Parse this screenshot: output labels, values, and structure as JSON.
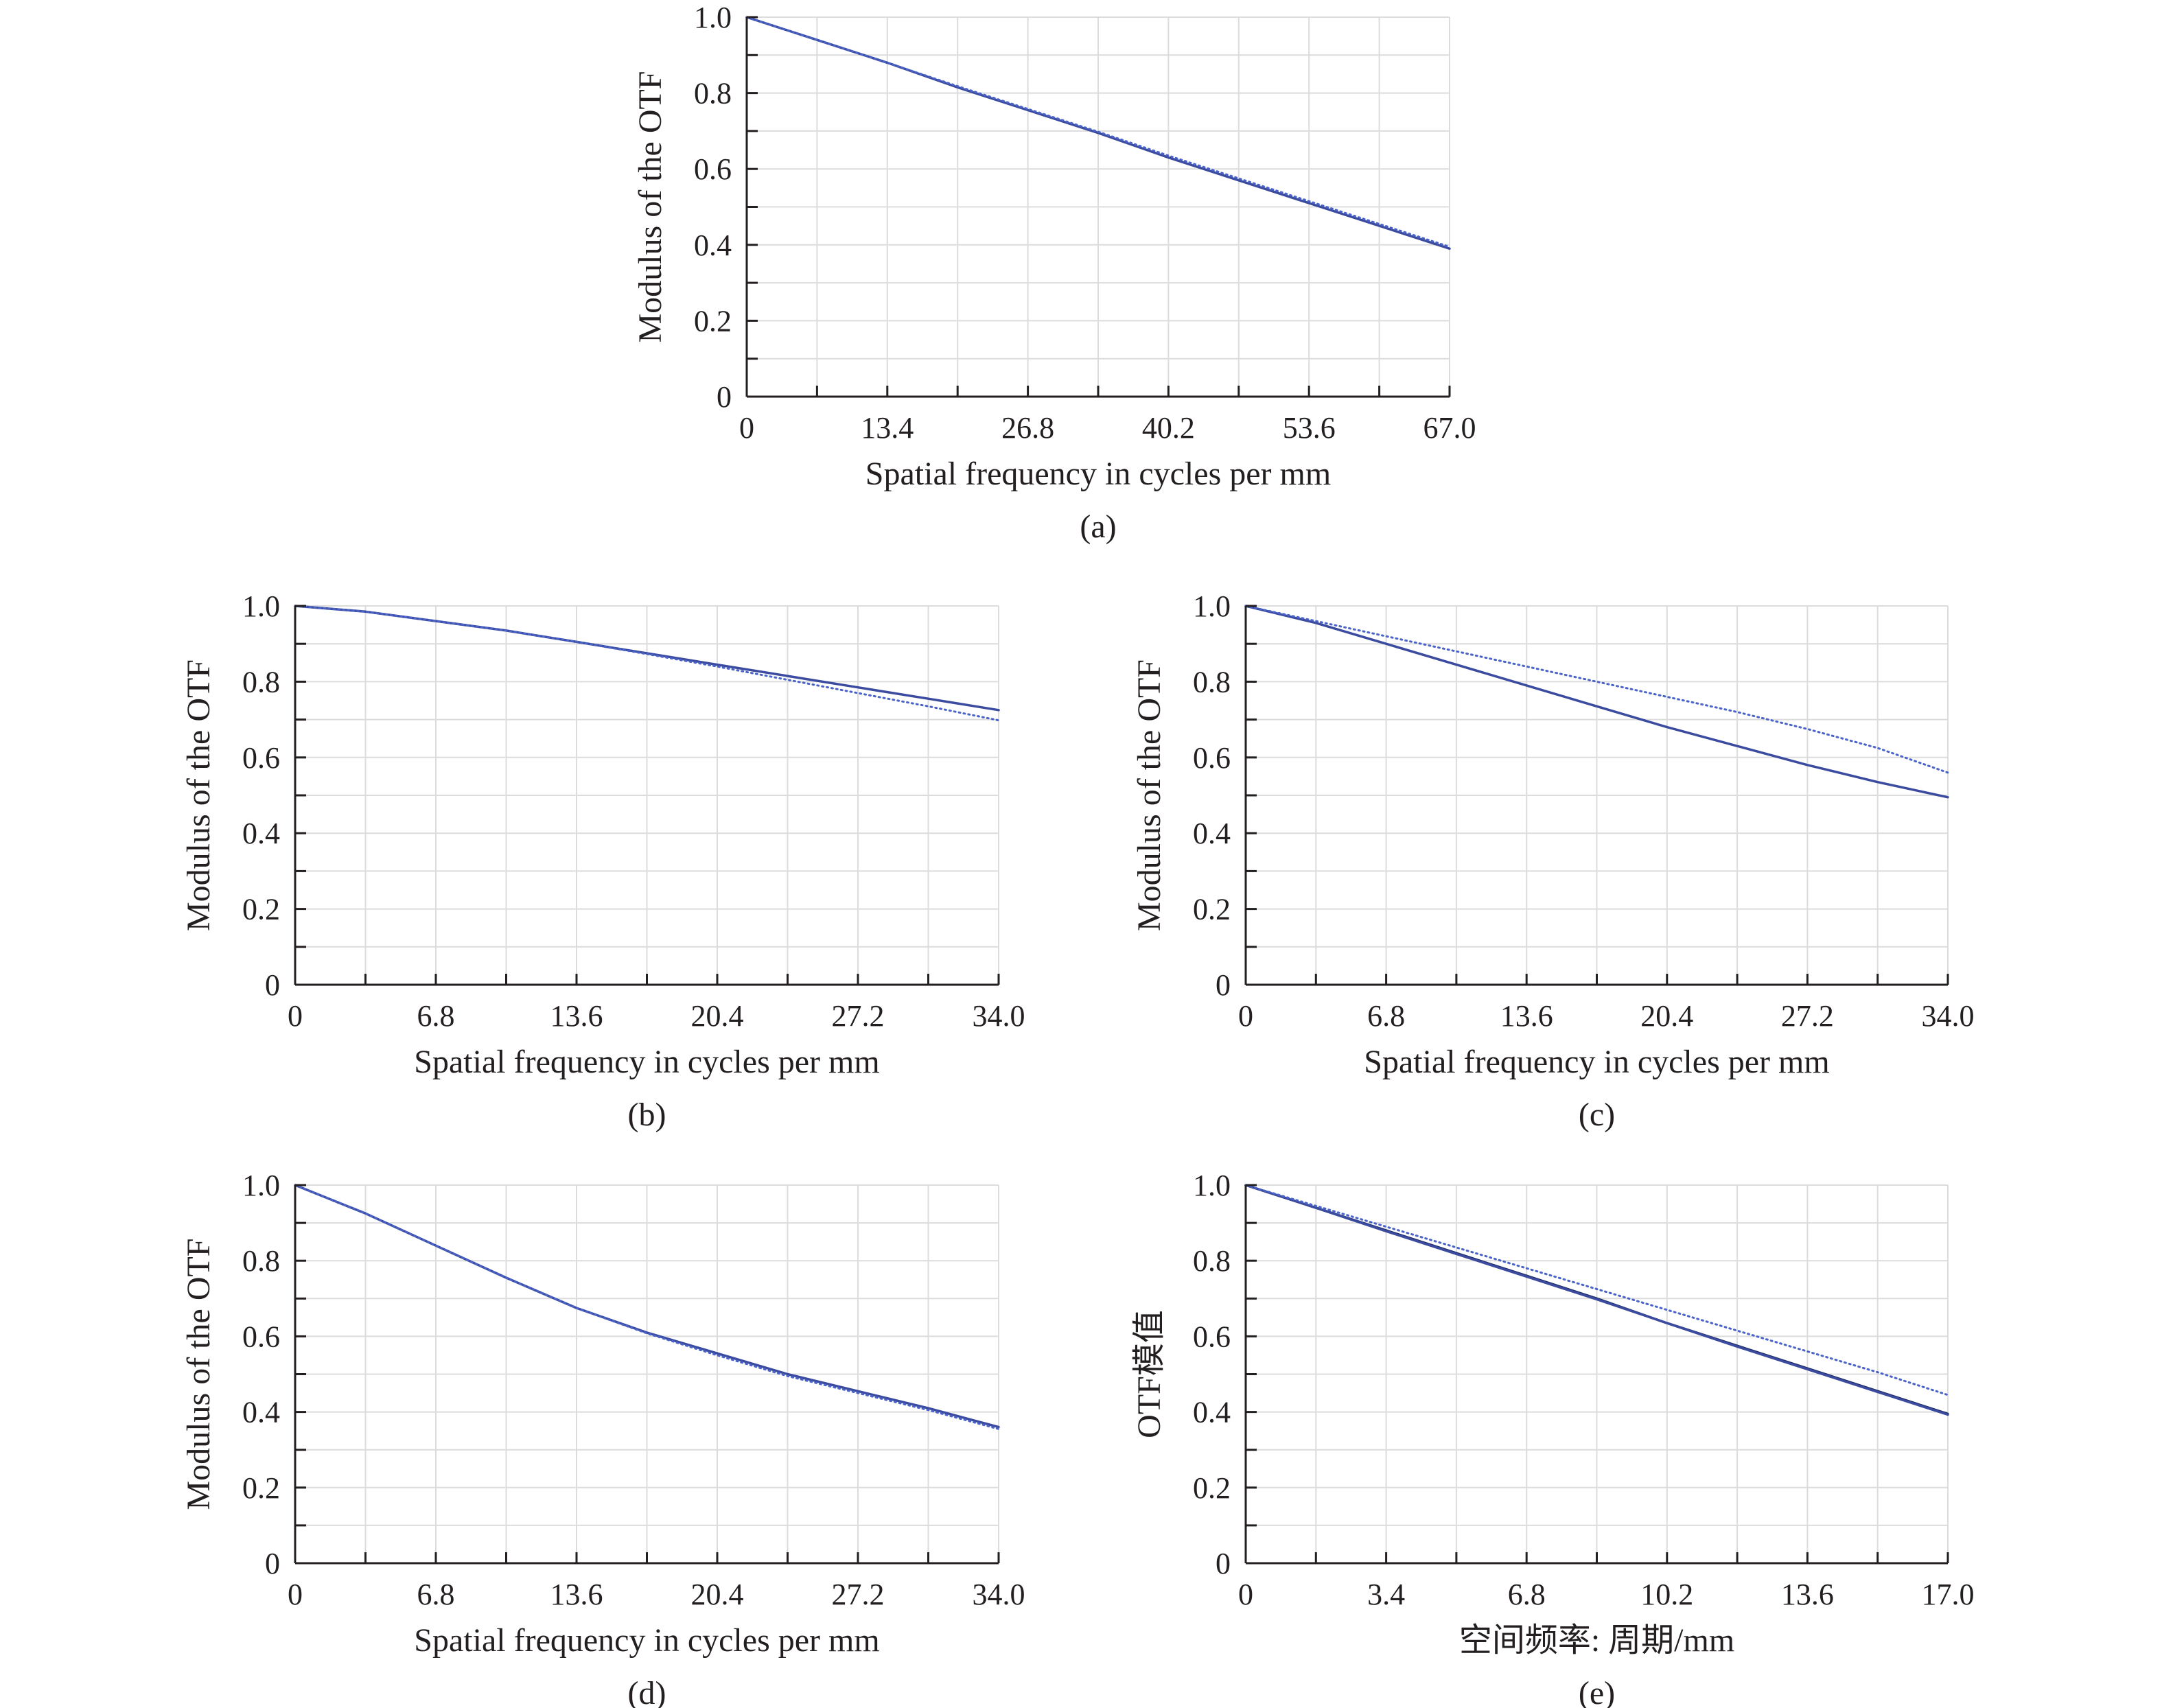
{
  "chart_data": [
    {
      "id": "a",
      "type": "line",
      "caption": "(a)",
      "xlabel": "Spatial frequency in cycles per mm",
      "ylabel": "Modulus of the OTF",
      "xlim": [
        0,
        67.0
      ],
      "ylim": [
        0,
        1.0
      ],
      "xticks": [
        0,
        13.4,
        26.8,
        40.2,
        53.6,
        67.0
      ],
      "xtick_labels": [
        "0",
        "13.4",
        "26.8",
        "40.2",
        "53.6",
        "67.0"
      ],
      "yticks": [
        0,
        0.2,
        0.4,
        0.6,
        0.8,
        1.0
      ],
      "ytick_labels": [
        "0",
        "0.2",
        "0.4",
        "0.6",
        "0.8",
        "1.0"
      ],
      "grid": true,
      "x": [
        0,
        6.7,
        13.4,
        20.1,
        26.8,
        33.5,
        40.2,
        46.9,
        53.6,
        60.3,
        67.0
      ],
      "series": [
        {
          "style": "solid",
          "color": "#3b4ba0",
          "values": [
            1.0,
            0.94,
            0.88,
            0.815,
            0.755,
            0.695,
            0.63,
            0.57,
            0.51,
            0.45,
            0.39
          ]
        },
        {
          "style": "dotted",
          "color": "#4a63c8",
          "values": [
            1.0,
            0.94,
            0.88,
            0.818,
            0.758,
            0.698,
            0.635,
            0.575,
            0.515,
            0.455,
            0.395
          ]
        }
      ]
    },
    {
      "id": "b",
      "type": "line",
      "caption": "(b)",
      "xlabel": "Spatial frequency in cycles per mm",
      "ylabel": "Modulus of the OTF",
      "xlim": [
        0,
        34.0
      ],
      "ylim": [
        0,
        1.0
      ],
      "xticks": [
        0,
        6.8,
        13.6,
        20.4,
        27.2,
        34.0
      ],
      "xtick_labels": [
        "0",
        "6.8",
        "13.6",
        "20.4",
        "27.2",
        "34.0"
      ],
      "yticks": [
        0,
        0.2,
        0.4,
        0.6,
        0.8,
        1.0
      ],
      "ytick_labels": [
        "0",
        "0.2",
        "0.4",
        "0.6",
        "0.8",
        "1.0"
      ],
      "grid": true,
      "x": [
        0,
        3.4,
        6.8,
        10.2,
        13.6,
        17.0,
        20.4,
        23.8,
        27.2,
        30.6,
        34.0
      ],
      "series": [
        {
          "style": "solid",
          "color": "#3b4ba0",
          "values": [
            1.0,
            0.985,
            0.96,
            0.935,
            0.905,
            0.875,
            0.845,
            0.815,
            0.785,
            0.755,
            0.725
          ]
        },
        {
          "style": "dotted",
          "color": "#4a63c8",
          "values": [
            1.0,
            0.985,
            0.96,
            0.935,
            0.905,
            0.873,
            0.84,
            0.805,
            0.77,
            0.735,
            0.698
          ]
        }
      ]
    },
    {
      "id": "c",
      "type": "line",
      "caption": "(c)",
      "xlabel": "Spatial frequency in cycles per mm",
      "ylabel": "Modulus of the OTF",
      "xlim": [
        0,
        34.0
      ],
      "ylim": [
        0,
        1.0
      ],
      "xticks": [
        0,
        6.8,
        13.6,
        20.4,
        27.2,
        34.0
      ],
      "xtick_labels": [
        "0",
        "6.8",
        "13.6",
        "20.4",
        "27.2",
        "34.0"
      ],
      "yticks": [
        0,
        0.2,
        0.4,
        0.6,
        0.8,
        1.0
      ],
      "ytick_labels": [
        "0",
        "0.2",
        "0.4",
        "0.6",
        "0.8",
        "1.0"
      ],
      "grid": true,
      "x": [
        0,
        3.4,
        6.8,
        10.2,
        13.6,
        17.0,
        20.4,
        23.8,
        27.2,
        30.6,
        34.0
      ],
      "series": [
        {
          "style": "solid",
          "color": "#3b4ba0",
          "values": [
            1.0,
            0.955,
            0.9,
            0.845,
            0.79,
            0.735,
            0.68,
            0.63,
            0.58,
            0.535,
            0.495
          ]
        },
        {
          "style": "dotted",
          "color": "#4a63c8",
          "values": [
            1.0,
            0.96,
            0.92,
            0.88,
            0.84,
            0.8,
            0.76,
            0.72,
            0.675,
            0.625,
            0.56
          ]
        }
      ]
    },
    {
      "id": "d",
      "type": "line",
      "caption": "(d)",
      "xlabel": "Spatial frequency in cycles per mm",
      "ylabel": "Modulus of the OTF",
      "xlim": [
        0,
        34.0
      ],
      "ylim": [
        0,
        1.0
      ],
      "xticks": [
        0,
        6.8,
        13.6,
        20.4,
        27.2,
        34.0
      ],
      "xtick_labels": [
        "0",
        "6.8",
        "13.6",
        "20.4",
        "27.2",
        "34.0"
      ],
      "yticks": [
        0,
        0.2,
        0.4,
        0.6,
        0.8,
        1.0
      ],
      "ytick_labels": [
        "0",
        "0.2",
        "0.4",
        "0.6",
        "0.8",
        "1.0"
      ],
      "grid": true,
      "x": [
        0,
        3.4,
        6.8,
        10.2,
        13.6,
        17.0,
        20.4,
        23.8,
        27.2,
        30.6,
        34.0
      ],
      "series": [
        {
          "style": "solid",
          "color": "#3b4ba0",
          "values": [
            1.0,
            0.925,
            0.84,
            0.755,
            0.675,
            0.61,
            0.555,
            0.5,
            0.455,
            0.41,
            0.36
          ]
        },
        {
          "style": "dotted",
          "color": "#4a63c8",
          "values": [
            1.0,
            0.925,
            0.84,
            0.755,
            0.675,
            0.608,
            0.55,
            0.495,
            0.45,
            0.405,
            0.355
          ]
        }
      ]
    },
    {
      "id": "e",
      "type": "line",
      "caption": "(e)",
      "xlabel": "空间频率: 周期/mm",
      "ylabel": "OTF模值",
      "xlim": [
        0,
        17.0
      ],
      "ylim": [
        0,
        1.0
      ],
      "xticks": [
        0,
        3.4,
        6.8,
        10.2,
        13.6,
        17.0
      ],
      "xtick_labels": [
        "0",
        "3.4",
        "6.8",
        "10.2",
        "13.6",
        "17.0"
      ],
      "yticks": [
        0,
        0.2,
        0.4,
        0.6,
        0.8,
        1.0
      ],
      "ytick_labels": [
        "0",
        "0.2",
        "0.4",
        "0.6",
        "0.8",
        "1.0"
      ],
      "grid": true,
      "x": [
        0,
        1.7,
        3.4,
        5.1,
        6.8,
        8.5,
        10.2,
        11.9,
        13.6,
        15.3,
        17.0
      ],
      "series": [
        {
          "style": "solid",
          "color": "#1e2a5e",
          "values": [
            1.0,
            0.94,
            0.88,
            0.82,
            0.76,
            0.7,
            0.635,
            0.575,
            0.515,
            0.455,
            0.395
          ]
        },
        {
          "style": "solid",
          "color": "#3b4ba0",
          "values": [
            1.0,
            0.94,
            0.878,
            0.818,
            0.758,
            0.698,
            0.635,
            0.573,
            0.513,
            0.453,
            0.393
          ]
        },
        {
          "style": "dotted",
          "color": "#4a63c8",
          "values": [
            1.0,
            0.945,
            0.89,
            0.835,
            0.78,
            0.725,
            0.67,
            0.615,
            0.56,
            0.505,
            0.445
          ]
        }
      ]
    }
  ]
}
